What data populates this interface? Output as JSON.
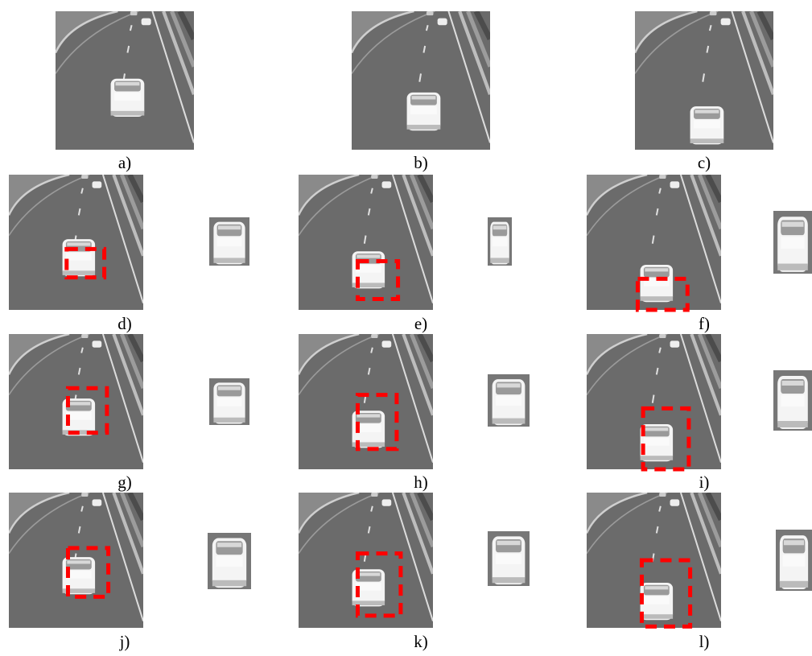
{
  "labels": [
    "a)",
    "b)",
    "c)",
    "d)",
    "e)",
    "f)",
    "g)",
    "h)",
    "i)",
    "j)",
    "k)",
    "l)"
  ]
}
